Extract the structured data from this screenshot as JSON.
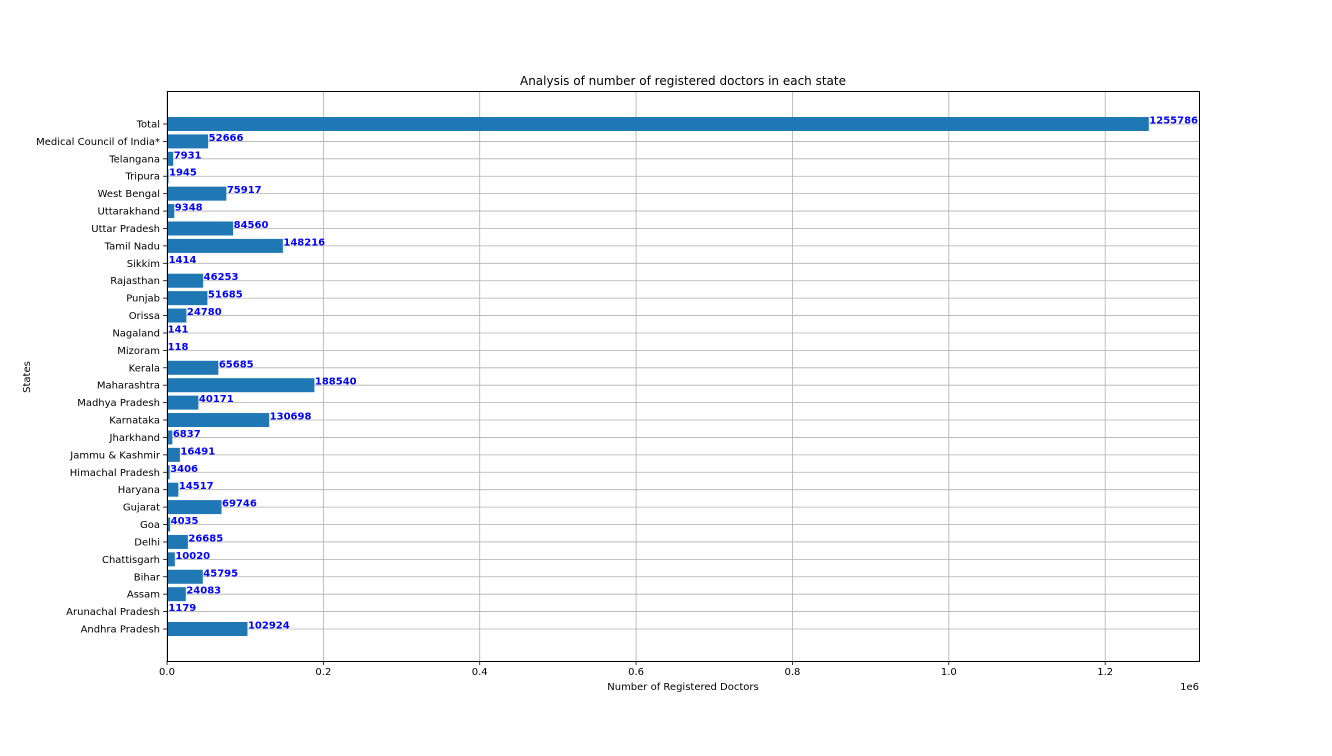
{
  "chart_data": {
    "type": "bar",
    "orientation": "horizontal",
    "title": "Analysis of number of registered doctors in each state",
    "xlabel": "Number of Registered Doctors",
    "ylabel": "States",
    "x_offset_text": "1e6",
    "xlim": [
      0,
      1320000
    ],
    "xticks": [
      0,
      0.2,
      0.4,
      0.6,
      0.8,
      1.0,
      1.2
    ],
    "xtick_labels": [
      "0.0",
      "0.2",
      "0.4",
      "0.6",
      "0.8",
      "1.0",
      "1.2"
    ],
    "grid": true,
    "bar_color": "#1f77b4",
    "label_color": "#0000ff",
    "categories": [
      "Andhra Pradesh",
      "Arunachal Pradesh",
      "Assam",
      "Bihar",
      "Chattisgarh",
      "Delhi",
      "Goa",
      "Gujarat",
      "Haryana",
      "Himachal Pradesh",
      "Jammu & Kashmir",
      "Jharkhand",
      "Karnataka",
      "Madhya Pradesh",
      "Maharashtra",
      "Kerala",
      "Mizoram",
      "Nagaland",
      "Orissa",
      "Punjab",
      "Rajasthan",
      "Sikkim",
      "Tamil Nadu",
      "Uttar Pradesh",
      "Uttarakhand",
      "West Bengal",
      "Tripura",
      "Telangana",
      "Medical Council of India*",
      "Total"
    ],
    "values": [
      102924,
      1179,
      24083,
      45795,
      10020,
      26685,
      4035,
      69746,
      14517,
      3406,
      16491,
      6837,
      130698,
      40171,
      188540,
      65685,
      118,
      141,
      24780,
      51685,
      46253,
      1414,
      148216,
      84560,
      9348,
      75917,
      1945,
      7931,
      52666,
      1255786
    ]
  }
}
